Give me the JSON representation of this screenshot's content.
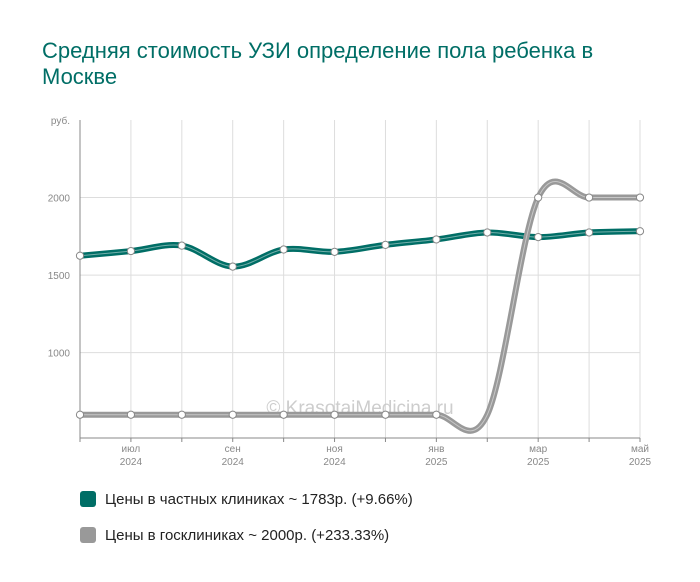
{
  "title": "Средняя стоимость УЗИ определение пола ребенка в Москве",
  "watermark": "© KrasotaiMedicina.ru",
  "colors": {
    "private": "#006e66",
    "state": "#999999",
    "grid": "#dddddd",
    "axis": "#888888"
  },
  "legend": {
    "private": "Цены в частных клиниках ~ 1783р. (+9.66%)",
    "state": "Цены в госклиниках ~ 2000р. (+233.33%)"
  },
  "chart_data": {
    "type": "line",
    "title": "Средняя стоимость УЗИ определение пола ребенка в Москве",
    "ylabel": "руб.",
    "ylim": [
      450,
      2500
    ],
    "yticks": [
      1000,
      1500,
      2000
    ],
    "x": [
      "2024-06",
      "2024-07",
      "2024-08",
      "2024-09",
      "2024-10",
      "2024-11",
      "2024-12",
      "2025-01",
      "2025-02",
      "2025-03",
      "2025-04",
      "2025-05"
    ],
    "xtick_labels": [
      {
        "idx": 1,
        "month": "июл",
        "year": "2024"
      },
      {
        "idx": 3,
        "month": "сен",
        "year": "2024"
      },
      {
        "idx": 5,
        "month": "ноя",
        "year": "2024"
      },
      {
        "idx": 7,
        "month": "янв",
        "year": "2025"
      },
      {
        "idx": 9,
        "month": "мар",
        "year": "2025"
      },
      {
        "idx": 11,
        "month": "май",
        "year": "2025"
      }
    ],
    "series": [
      {
        "name": "Цены в частных клиниках",
        "values": [
          1625,
          1655,
          1690,
          1555,
          1665,
          1650,
          1695,
          1730,
          1775,
          1745,
          1775,
          1783
        ]
      },
      {
        "name": "Цены в госклиниках",
        "values": [
          600,
          600,
          600,
          600,
          600,
          600,
          600,
          600,
          600,
          2000,
          2000,
          2000
        ]
      }
    ],
    "grid": true,
    "legend_position": "bottom"
  }
}
